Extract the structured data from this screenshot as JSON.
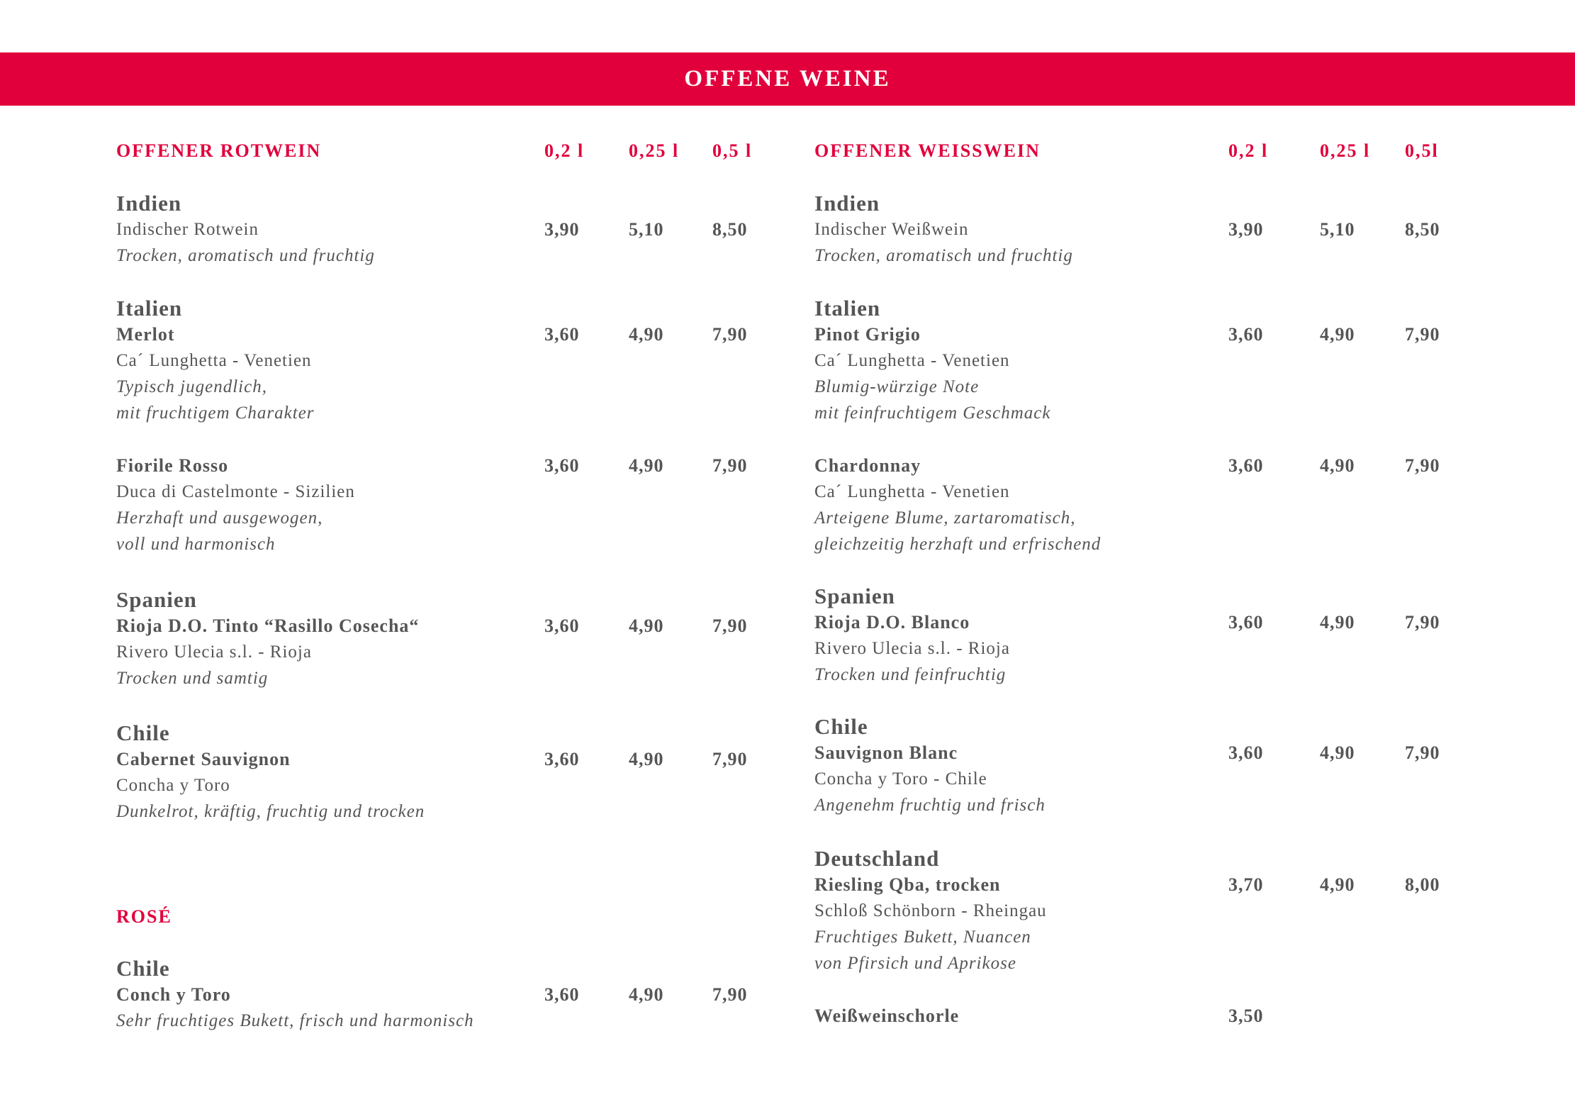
{
  "title": "OFFENE WEINE",
  "colors": {
    "accent": "#e1003c",
    "text": "#555555"
  },
  "left": {
    "heading": "OFFENER ROTWEIN",
    "sizes": [
      "0,2 l",
      "0,25 l",
      "0,5 l"
    ],
    "groups": [
      {
        "lines": [
          {
            "t": "country",
            "text": "Indien"
          },
          {
            "t": "producer",
            "text": "Indischer Rotwein",
            "prices": [
              "3,90",
              "5,10",
              "8,50"
            ]
          },
          {
            "t": "note",
            "text": "Trocken, aromatisch und fruchtig"
          }
        ]
      },
      {
        "lines": [
          {
            "t": "country",
            "text": "Italien"
          },
          {
            "t": "name",
            "text": "Merlot",
            "prices": [
              "3,60",
              "4,90",
              "7,90"
            ]
          },
          {
            "t": "producer",
            "text": "Ca´ Lunghetta - Venetien"
          },
          {
            "t": "note",
            "text": "Typisch jugendlich,"
          },
          {
            "t": "note",
            "text": "mit fruchtigem Charakter"
          }
        ]
      },
      {
        "lines": [
          {
            "t": "name",
            "text": "Fiorile Rosso",
            "prices": [
              "3,60",
              "4,90",
              "7,90"
            ]
          },
          {
            "t": "producer",
            "text": "Duca di Castelmonte - Sizilien"
          },
          {
            "t": "note",
            "text": "Herzhaft und ausgewogen,"
          },
          {
            "t": "note",
            "text": "voll und harmonisch"
          }
        ]
      },
      {
        "lines": [
          {
            "t": "country",
            "text": "Spanien"
          },
          {
            "t": "name",
            "text": "Rioja D.O. Tinto “Rasillo Cosecha“",
            "prices": [
              "3,60",
              "4,90",
              "7,90"
            ]
          },
          {
            "t": "producer",
            "text": "Rivero Ulecia s.l. - Rioja"
          },
          {
            "t": "note",
            "text": "Trocken und samtig"
          }
        ]
      },
      {
        "lines": [
          {
            "t": "country",
            "text": "Chile"
          },
          {
            "t": "name",
            "text": "Cabernet Sauvignon",
            "prices": [
              "3,60",
              "4,90",
              "7,90"
            ]
          },
          {
            "t": "producer",
            "text": "Concha y Toro"
          },
          {
            "t": "note",
            "text": "Dunkelrot, kräftig, fruchtig und trocken"
          }
        ]
      },
      {
        "lines": [
          {
            "t": "section",
            "text": "ROSÉ"
          }
        ]
      },
      {
        "lines": [
          {
            "t": "country",
            "text": "Chile"
          },
          {
            "t": "name",
            "text": "Conch y Toro",
            "prices": [
              "3,60",
              "4,90",
              "7,90"
            ]
          },
          {
            "t": "note",
            "text": "Sehr fruchtiges Bukett, frisch und harmonisch"
          }
        ]
      }
    ]
  },
  "right": {
    "heading": "OFFENER WEISSWEIN",
    "sizes": [
      "0,2 l",
      "0,25 l",
      "0,5l"
    ],
    "groups": [
      {
        "lines": [
          {
            "t": "country",
            "text": "Indien"
          },
          {
            "t": "producer",
            "text": "Indischer Weißwein",
            "prices": [
              "3,90",
              "5,10",
              "8,50"
            ]
          },
          {
            "t": "note",
            "text": "Trocken, aromatisch und fruchtig"
          }
        ]
      },
      {
        "lines": [
          {
            "t": "country",
            "text": "Italien"
          },
          {
            "t": "name",
            "text": "Pinot Grigio",
            "prices": [
              "3,60",
              "4,90",
              "7,90"
            ]
          },
          {
            "t": "producer",
            "text": "Ca´ Lunghetta - Venetien"
          },
          {
            "t": "note",
            "text": "Blumig-würzige Note"
          },
          {
            "t": "note",
            "text": "mit feinfruchtigem Geschmack"
          }
        ]
      },
      {
        "lines": [
          {
            "t": "name",
            "text": "Chardonnay",
            "prices": [
              "3,60",
              "4,90",
              "7,90"
            ]
          },
          {
            "t": "producer",
            "text": "Ca´ Lunghetta - Venetien"
          },
          {
            "t": "note",
            "text": "Arteigene Blume, zartaromatisch,"
          },
          {
            "t": "note",
            "text": "gleichzeitig herzhaft und erfrischend"
          }
        ]
      },
      {
        "lines": [
          {
            "t": "country",
            "text": "Spanien"
          },
          {
            "t": "name",
            "text": "Rioja D.O. Blanco",
            "prices": [
              "3,60",
              "4,90",
              "7,90"
            ]
          },
          {
            "t": "producer",
            "text": "Rivero Ulecia s.l. - Rioja"
          },
          {
            "t": "note",
            "text": "Trocken und feinfruchtig"
          }
        ]
      },
      {
        "lines": [
          {
            "t": "country",
            "text": "Chile"
          },
          {
            "t": "name",
            "text": "Sauvignon Blanc",
            "prices": [
              "3,60",
              "4,90",
              "7,90"
            ]
          },
          {
            "t": "producer",
            "text": "Concha y Toro - Chile"
          },
          {
            "t": "note",
            "text": "Angenehm fruchtig und frisch"
          }
        ]
      },
      {
        "lines": [
          {
            "t": "country",
            "text": "Deutschland"
          },
          {
            "t": "name",
            "text": "Riesling Qba, trocken",
            "prices": [
              "3,70",
              "4,90",
              "8,00"
            ]
          },
          {
            "t": "producer",
            "text": "Schloß Schönborn - Rheingau"
          },
          {
            "t": "note",
            "text": "Fruchtiges Bukett, Nuancen"
          },
          {
            "t": "note",
            "text": "von Pfirsich und Aprikose"
          }
        ]
      },
      {
        "lines": [
          {
            "t": "name",
            "text": "Weißweinschorle",
            "prices": [
              "3,50"
            ]
          }
        ]
      }
    ]
  }
}
